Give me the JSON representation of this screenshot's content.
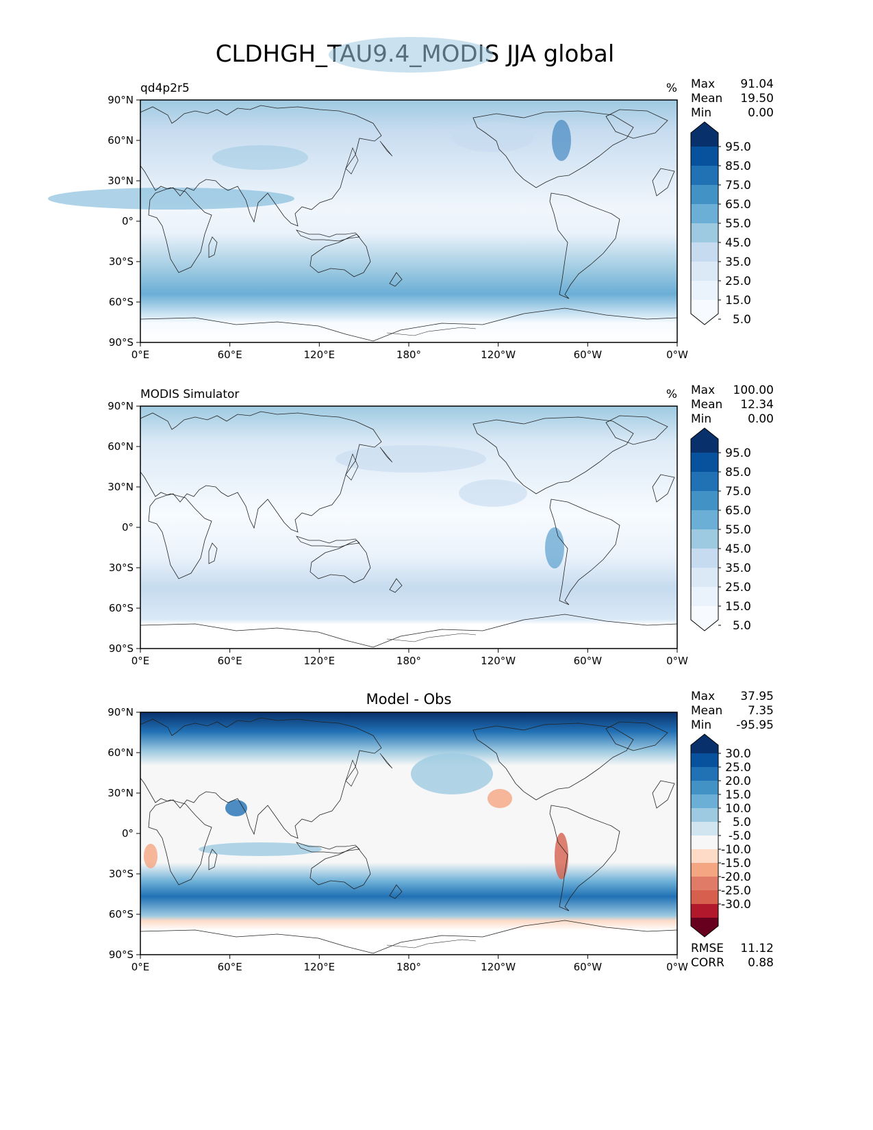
{
  "title": "CLDHGH_TAU9.4_MODIS JJA global",
  "x_ticks": [
    "0°E",
    "60°E",
    "120°E",
    "180°",
    "120°W",
    "60°W",
    "0°W"
  ],
  "y_ticks": [
    "90°N",
    "60°N",
    "30°N",
    "0°",
    "30°S",
    "60°S",
    "90°S"
  ],
  "chart_data": [
    {
      "type": "heatmap",
      "name": "panel-test",
      "left_title": "qd4p2r5",
      "center_title": "",
      "units": "%",
      "stats": [
        {
          "label": "Max",
          "value": "91.04"
        },
        {
          "label": "Mean",
          "value": "19.50"
        },
        {
          "label": "Min",
          "value": "0.00"
        }
      ],
      "colorbar": {
        "labels": [
          "95.0",
          "85.0",
          "75.0",
          "65.0",
          "55.0",
          "45.0",
          "35.0",
          "25.0",
          "15.0",
          "5.0"
        ],
        "colors": [
          "#08306b",
          "#08519c",
          "#2171b5",
          "#4292c6",
          "#6baed6",
          "#9ecae1",
          "#c6dbef",
          "#dbe9f6",
          "#eaf2fb",
          "#f7fbff"
        ],
        "extend": "both"
      },
      "xlim": [
        0,
        360
      ],
      "ylim": [
        -90,
        90
      ]
    },
    {
      "type": "heatmap",
      "name": "panel-reference",
      "left_title": "MODIS Simulator",
      "center_title": "",
      "units": "%",
      "stats": [
        {
          "label": "Max",
          "value": "100.00"
        },
        {
          "label": "Mean",
          "value": "12.34"
        },
        {
          "label": "Min",
          "value": "0.00"
        }
      ],
      "colorbar": {
        "labels": [
          "95.0",
          "85.0",
          "75.0",
          "65.0",
          "55.0",
          "45.0",
          "35.0",
          "25.0",
          "15.0",
          "5.0"
        ],
        "colors": [
          "#08306b",
          "#08519c",
          "#2171b5",
          "#4292c6",
          "#6baed6",
          "#9ecae1",
          "#c6dbef",
          "#dbe9f6",
          "#eaf2fb",
          "#f7fbff"
        ],
        "extend": "both"
      },
      "xlim": [
        0,
        360
      ],
      "ylim": [
        -90,
        90
      ]
    },
    {
      "type": "heatmap",
      "name": "panel-difference",
      "left_title": "",
      "center_title": "Model - Obs",
      "units": "",
      "stats": [
        {
          "label": "Max",
          "value": "37.95"
        },
        {
          "label": "Mean",
          "value": "7.35"
        },
        {
          "label": "Min",
          "value": "-95.95"
        }
      ],
      "bottom_stats": [
        {
          "label": "RMSE",
          "value": "11.12"
        },
        {
          "label": "CORR",
          "value": "0.88"
        }
      ],
      "colorbar": {
        "labels": [
          "30.0",
          "25.0",
          "20.0",
          "15.0",
          "10.0",
          "5.0",
          "-5.0",
          "-10.0",
          "-15.0",
          "-20.0",
          "-25.0",
          "-30.0"
        ],
        "colors": [
          "#08306b",
          "#08519c",
          "#2171b5",
          "#4292c6",
          "#6baed6",
          "#9ecae1",
          "#d1e5f0",
          "#f7f7f7",
          "#fddbc7",
          "#f4a582",
          "#e07b68",
          "#d6604d",
          "#b2182b",
          "#67001f"
        ],
        "extend": "both"
      },
      "xlim": [
        0,
        360
      ],
      "ylim": [
        -90,
        90
      ]
    }
  ]
}
